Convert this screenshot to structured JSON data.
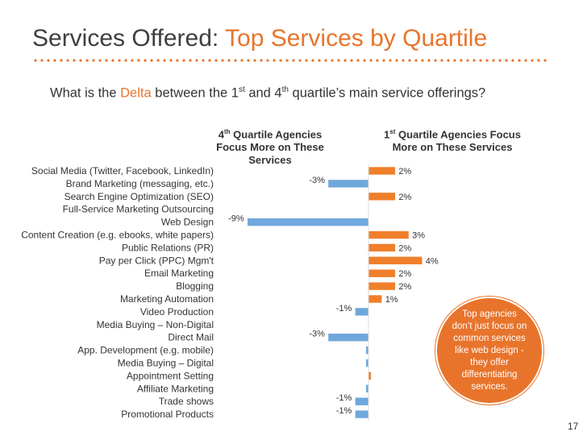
{
  "title": {
    "part1": "Services Offered:",
    "part2": "Top Services by Quartile"
  },
  "question": {
    "before": "What is the",
    "highlight": "Delta",
    "between": "between the 1",
    "sup1": "st",
    "and": "and 4",
    "sup2": "th",
    "after": "quartile’s main service offerings?"
  },
  "headers": {
    "left_num": "4",
    "left_sup": "th",
    "left_rest": "Quartile Agencies Focus More on These Services",
    "right_num": "1",
    "right_sup": "st",
    "right_rest": "Quartile Agencies Focus More on These Services"
  },
  "callout": "Top agencies don’t just focus on common services like web design  - they offer differentiating services.",
  "page_number": "17",
  "colors": {
    "positive": "#f07f2b",
    "negative": "#6fa8dc",
    "accent": "#e8742c"
  },
  "chart_data": {
    "type": "bar",
    "orientation": "horizontal",
    "categories": [
      "Social Media (Twitter, Facebook, LinkedIn)",
      "Brand Marketing (messaging, etc.)",
      "Search Engine Optimization (SEO)",
      "Full-Service Marketing Outsourcing",
      "Web Design",
      "Content Creation (e.g. ebooks, white papers)",
      "Public Relations (PR)",
      "Pay per Click (PPC) Mgm't",
      "Email Marketing",
      "Blogging",
      "Marketing Automation",
      "Video Production",
      "Media Buying – Non-Digital",
      "Direct Mail",
      "App. Development (e.g. mobile)",
      "Media Buying – Digital",
      "Appointment Setting",
      "Affiliate Marketing",
      "Trade shows",
      "Promotional Products"
    ],
    "values": [
      2,
      -3,
      2,
      0,
      -9,
      3,
      2,
      4,
      2,
      2,
      1,
      -1,
      0,
      -3,
      -0.2,
      -0.2,
      0.2,
      -0.2,
      -1,
      -1
    ],
    "data_labels": [
      "2%",
      "-3%",
      "2%",
      "",
      "-9%",
      "3%",
      "2%",
      "4%",
      "2%",
      "2%",
      "1%",
      "-1%",
      "",
      "-3%",
      "",
      "",
      "",
      "",
      "-1%",
      "-1%"
    ],
    "xlim": [
      -9,
      4
    ],
    "unit": "%"
  }
}
